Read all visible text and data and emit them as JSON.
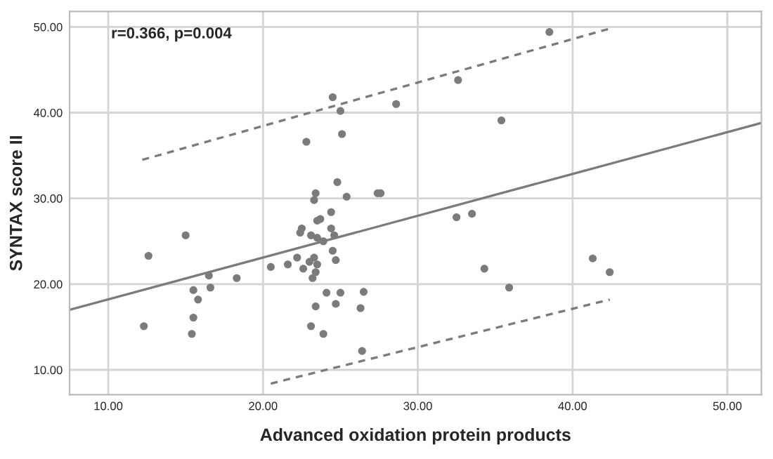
{
  "chart_data": {
    "type": "scatter",
    "xlabel": "Advanced oxidation protein products",
    "ylabel": "SYNTAX score II",
    "annotations": [
      "r=0.366, p=0.004"
    ],
    "xlim": [
      7.5,
      52.2
    ],
    "ylim": [
      7.1,
      51.8
    ],
    "xticks": [
      {
        "value": 10,
        "label": "10.00"
      },
      {
        "value": 20,
        "label": "20.00"
      },
      {
        "value": 30,
        "label": "30.00"
      },
      {
        "value": 40,
        "label": "40.00"
      },
      {
        "value": 50,
        "label": "50.00"
      }
    ],
    "yticks": [
      {
        "value": 10,
        "label": "10.00"
      },
      {
        "value": 20,
        "label": "20.00"
      },
      {
        "value": 30,
        "label": "30.00"
      },
      {
        "value": 40,
        "label": "40.00"
      },
      {
        "value": 50,
        "label": "50.00"
      }
    ],
    "grid": true,
    "series": [
      {
        "color": "#7b7b7b",
        "marker": "circle",
        "x": [
          38.5,
          32.6,
          35.4,
          32.5,
          33.5,
          34.3,
          35.9,
          41.3,
          42.4,
          24.5,
          25.0,
          25.1,
          22.8,
          28.6,
          24.8,
          23.4,
          23.3,
          25.4,
          27.4,
          27.6,
          24.4,
          23.7,
          23.5,
          22.5,
          22.4,
          23.1,
          23.5,
          23.9,
          24.4,
          24.6,
          15.0,
          12.6,
          24.5,
          24.7,
          20.5,
          21.6,
          22.2,
          22.6,
          23.0,
          23.3,
          23.5,
          23.4,
          23.2,
          18.3,
          16.5,
          16.6,
          15.5,
          15.8,
          15.5,
          15.4,
          12.3,
          24.1,
          25.0,
          26.5,
          23.4,
          24.7,
          26.3,
          23.1,
          23.9,
          26.4
        ],
        "values": [
          49.4,
          43.8,
          39.1,
          27.8,
          28.2,
          21.8,
          19.6,
          23.0,
          21.4,
          41.8,
          40.2,
          37.5,
          36.6,
          41.0,
          31.9,
          30.6,
          29.8,
          30.2,
          30.6,
          30.6,
          28.4,
          27.6,
          27.4,
          26.5,
          26.0,
          25.7,
          25.4,
          25.0,
          26.5,
          25.7,
          25.7,
          23.3,
          23.9,
          22.8,
          22.0,
          22.3,
          23.1,
          21.8,
          22.6,
          23.1,
          22.3,
          21.4,
          20.7,
          20.7,
          21.0,
          19.6,
          19.3,
          18.2,
          16.1,
          14.2,
          15.1,
          19.0,
          19.0,
          19.1,
          17.4,
          17.7,
          17.2,
          15.1,
          14.2,
          12.2
        ]
      },
      {
        "type": "line",
        "color": "#7b7b7b",
        "line_style": "solid",
        "marker": "none",
        "x": [
          7.5,
          52.2
        ],
        "values": [
          17.0,
          38.8
        ]
      },
      {
        "type": "line",
        "color": "#7b7b7b",
        "line_style": "dashed",
        "marker": "none",
        "x": [
          12.2,
          42.4
        ],
        "values": [
          34.5,
          49.8
        ]
      },
      {
        "type": "line",
        "color": "#7b7b7b",
        "line_style": "dashed",
        "marker": "none",
        "x": [
          20.5,
          42.4
        ],
        "values": [
          8.4,
          18.2
        ]
      }
    ]
  }
}
